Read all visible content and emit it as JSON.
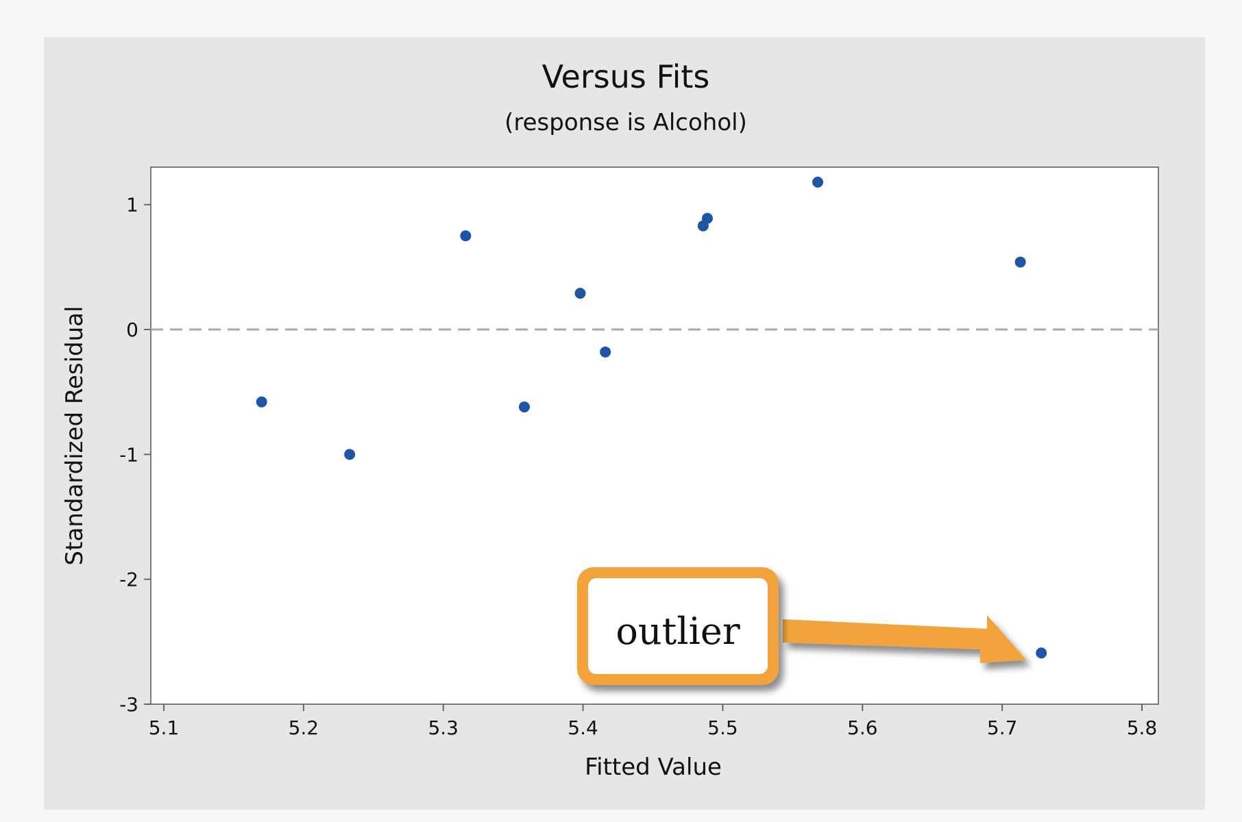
{
  "chart_data": {
    "type": "scatter",
    "title": "Versus Fits",
    "subtitle": "(response is Alcohol)",
    "xlabel": "Fitted Value",
    "ylabel": "Standardized Residual",
    "xlim": [
      5.1,
      5.8
    ],
    "ylim": [
      -3,
      1.3
    ],
    "x_ticks": [
      "5.1",
      "5.2",
      "5.3",
      "5.4",
      "5.5",
      "5.6",
      "5.7",
      "5.8"
    ],
    "y_ticks": [
      "1",
      "0",
      "-1",
      "-2",
      "-3"
    ],
    "reference_line": 0,
    "point_color": "#1f55a5",
    "points": [
      {
        "x": 5.17,
        "y": -0.58
      },
      {
        "x": 5.233,
        "y": -1.0
      },
      {
        "x": 5.316,
        "y": 0.75
      },
      {
        "x": 5.358,
        "y": -0.62
      },
      {
        "x": 5.398,
        "y": 0.29
      },
      {
        "x": 5.416,
        "y": -0.18
      },
      {
        "x": 5.486,
        "y": 0.83
      },
      {
        "x": 5.489,
        "y": 0.89
      },
      {
        "x": 5.568,
        "y": 1.18
      },
      {
        "x": 5.713,
        "y": 0.54
      },
      {
        "x": 5.728,
        "y": -2.59
      }
    ],
    "annotations": [
      {
        "label": "outlier",
        "target_point_index": 10,
        "accent": "#f2a33a"
      }
    ]
  }
}
